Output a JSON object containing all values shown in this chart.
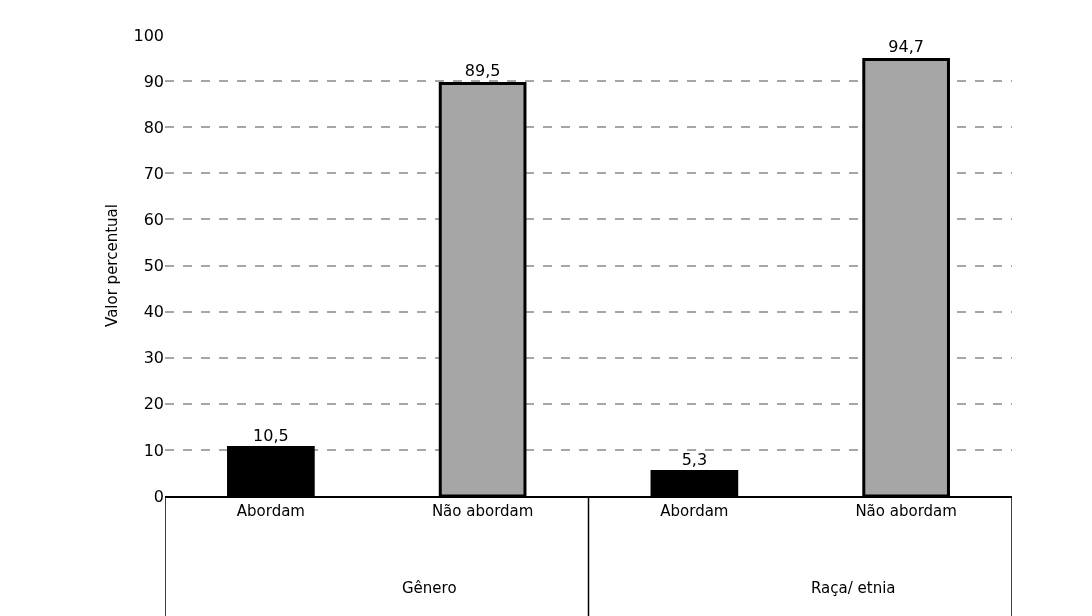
{
  "chart_data": {
    "type": "bar",
    "ylabel": "Valor percentual",
    "categories": [
      "Abordam",
      "Não abordam",
      "Abordam",
      "Não abordam"
    ],
    "values": [
      10.5,
      89.5,
      5.3,
      94.7
    ],
    "colors": [
      "#000000",
      "#a6a6a6",
      "#000000",
      "#a6a6a6"
    ],
    "value_labels": [
      "10,5",
      "89,5",
      "5,3",
      "94,7"
    ],
    "annotations": [
      "Gênero",
      "Raça/ etnia"
    ],
    "ylim": [
      0,
      100
    ],
    "yticks": [
      0,
      10,
      20,
      30,
      40,
      50,
      60,
      70,
      80,
      90,
      100
    ],
    "grid": "y",
    "line_style": "dashed"
  }
}
